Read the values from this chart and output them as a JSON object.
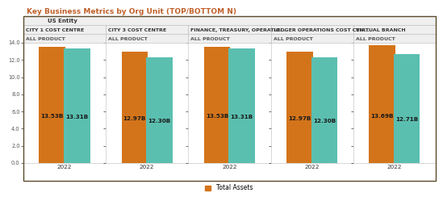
{
  "title": "Key Business Metrics by Org Unit (TOP/BOTTOM N)",
  "title_color": "#c0602a",
  "header_row1": "US Entity",
  "groups": [
    {
      "name": "CITY 1 COST CENTRE",
      "subname": "ALL PRODUCT",
      "bar1": 13.53,
      "bar2": 13.31,
      "label1": "13.53B",
      "label2": "13.31B",
      "year": "2022"
    },
    {
      "name": "CITY 3 COST CENTRE",
      "subname": "ALL PRODUCT",
      "bar1": 12.97,
      "bar2": 12.3,
      "label1": "12.97B",
      "label2": "12.30B",
      "year": "2022"
    },
    {
      "name": "FINANCE, TREASURY, OPERATIO...",
      "subname": "ALL PRODUCT",
      "bar1": 13.53,
      "bar2": 13.31,
      "label1": "13.53B",
      "label2": "13.31B",
      "year": "2022"
    },
    {
      "name": "LEDGER OPERATIONS COST CEN...",
      "subname": "ALL PRODUCT",
      "bar1": 12.97,
      "bar2": 12.3,
      "label1": "12.97B",
      "label2": "12.30B",
      "year": "2022"
    },
    {
      "name": "VIRTUAL BRANCH",
      "subname": "ALL PRODUCT",
      "bar1": 13.69,
      "bar2": 12.71,
      "label1": "13.69B",
      "label2": "12.71B",
      "year": "2022"
    }
  ],
  "bar1_color": "#d4741a",
  "bar2_color": "#5bbfb0",
  "ylim": [
    0,
    14.0
  ],
  "yticks": [
    0.0,
    2.0,
    4.0,
    6.0,
    8.0,
    10.0,
    12.0,
    14.0
  ],
  "legend_label": "Total Assets",
  "plot_bg": "#ffffff",
  "header_bg": "#efefef",
  "outer_bg": "#ffffff",
  "border_color": "#bbbbbb",
  "outer_border": "#5a4a2a",
  "label_fontsize": 5.2,
  "tick_fontsize": 4.8,
  "year_fontsize": 5.2,
  "header_name_fontsize": 4.5,
  "header_sub_fontsize": 4.5,
  "header_entity_fontsize": 5.0,
  "title_fontsize": 6.5,
  "legend_fontsize": 5.5
}
